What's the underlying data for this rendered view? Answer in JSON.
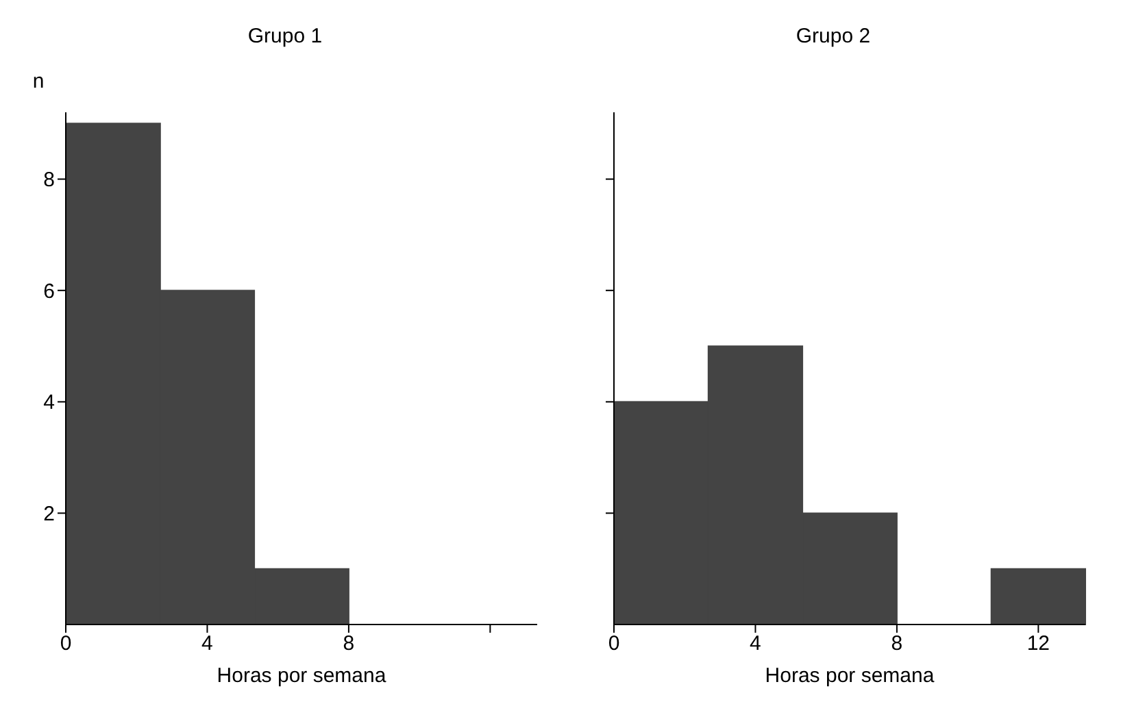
{
  "chart_data": [
    {
      "type": "histogram",
      "title": "Grupo 1",
      "xlabel": "Horas por semana",
      "ylabel": "n",
      "bins": [
        0,
        2.67,
        5.33,
        8
      ],
      "values": [
        9,
        6,
        1
      ],
      "color": "#444444",
      "xlim": [
        0,
        13.33
      ],
      "xticks": [
        0,
        4,
        8,
        {
          "value": 12,
          "label": null
        }
      ],
      "ylim": [
        0,
        9.2
      ],
      "yticks": [
        2,
        4,
        6,
        8
      ],
      "grid": false
    },
    {
      "type": "histogram",
      "title": "Grupo 2",
      "xlabel": "Horas por semana",
      "bins": [
        0,
        2.67,
        5.33,
        8,
        10.67,
        13.33
      ],
      "values": [
        4,
        5,
        2,
        0,
        1
      ],
      "color": "#444444",
      "xlim": [
        0,
        13.33
      ],
      "xticks": [
        0,
        4,
        8,
        12
      ],
      "ylim": [
        0,
        9.2
      ],
      "yticks": [
        {
          "value": 2,
          "label": null
        },
        {
          "value": 4,
          "label": null
        },
        {
          "value": 6,
          "label": null
        },
        {
          "value": 8,
          "label": null
        }
      ],
      "tick_labels": "x",
      "grid": false
    }
  ]
}
